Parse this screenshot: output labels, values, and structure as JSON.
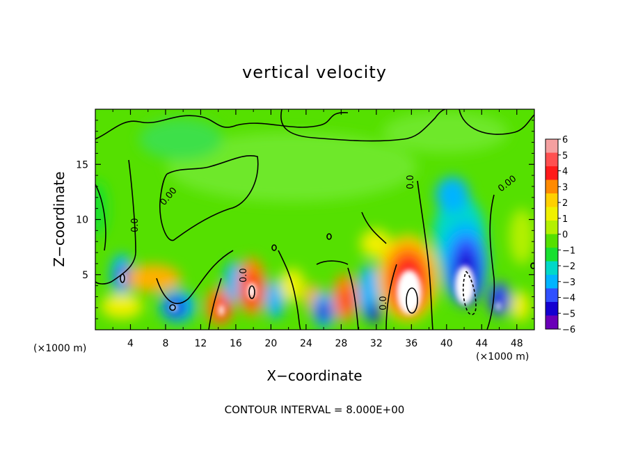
{
  "chart_data": {
    "type": "heatmap",
    "title": "vertical velocity",
    "xlabel": "X−coordinate",
    "ylabel": "Z−coordinate",
    "x_unit_label_left": "(×1000 m)",
    "x_unit_label_right": "(×1000 m)",
    "xlim": [
      0,
      50
    ],
    "ylim": [
      0,
      20
    ],
    "x_ticks": [
      4,
      8,
      12,
      16,
      20,
      24,
      28,
      32,
      36,
      40,
      44,
      48
    ],
    "x_tick_labels": [
      "4",
      "8",
      "12",
      "16",
      "20",
      "24",
      "28",
      "32",
      "36",
      "40",
      "44",
      "48"
    ],
    "y_ticks": [
      5,
      10,
      15
    ],
    "y_tick_labels": [
      "5",
      "10",
      "15"
    ],
    "note": "CONTOUR INTERVAL = 8.000E+00",
    "contour_labels": [
      "0.00",
      "0.0",
      "0.0",
      "0.0",
      "0.0",
      "0.00"
    ],
    "colorbar": {
      "ticks": [
        6,
        5,
        4,
        3,
        2,
        1,
        0,
        -1,
        -2,
        -3,
        -4,
        -5,
        -6
      ],
      "labels": [
        "6",
        "5",
        "4",
        "3",
        "2",
        "1",
        "0",
        "−1",
        "−2",
        "−3",
        "−4",
        "−5",
        "−6"
      ],
      "range": [
        -6,
        6
      ],
      "colors_top_to_bottom": [
        "#f4a0a0",
        "#ff5050",
        "#ff1a1a",
        "#ff8a00",
        "#ffd000",
        "#f0f000",
        "#b4f000",
        "#55e000",
        "#18e030",
        "#00d8c8",
        "#00b4ff",
        "#3050ff",
        "#1400d0",
        "#6a00b8"
      ]
    },
    "features": [
      {
        "kind": "updraft",
        "x_km": 35,
        "z_km": 2.8,
        "peak": 6
      },
      {
        "kind": "updraft",
        "x_km": 17.8,
        "z_km": 3.2,
        "peak": 6
      },
      {
        "kind": "updraft",
        "x_km": 14.2,
        "z_km": 1.8,
        "peak": 6
      },
      {
        "kind": "updraft",
        "x_km": 28,
        "z_km": 2.6,
        "peak": 4
      },
      {
        "kind": "downdraft",
        "x_km": 42,
        "z_km": 4.2,
        "peak": -6
      },
      {
        "kind": "downdraft",
        "x_km": 9.2,
        "z_km": 2,
        "peak": -6
      },
      {
        "kind": "downdraft",
        "x_km": 3.3,
        "z_km": 4.6,
        "peak": -6
      },
      {
        "kind": "downdraft",
        "x_km": 46.2,
        "z_km": 2,
        "peak": -6
      },
      {
        "kind": "downdraft",
        "x_km": 26,
        "z_km": 1.8,
        "peak": -5
      },
      {
        "kind": "downdraft",
        "x_km": 31.5,
        "z_km": 1.4,
        "peak": -4
      }
    ]
  }
}
